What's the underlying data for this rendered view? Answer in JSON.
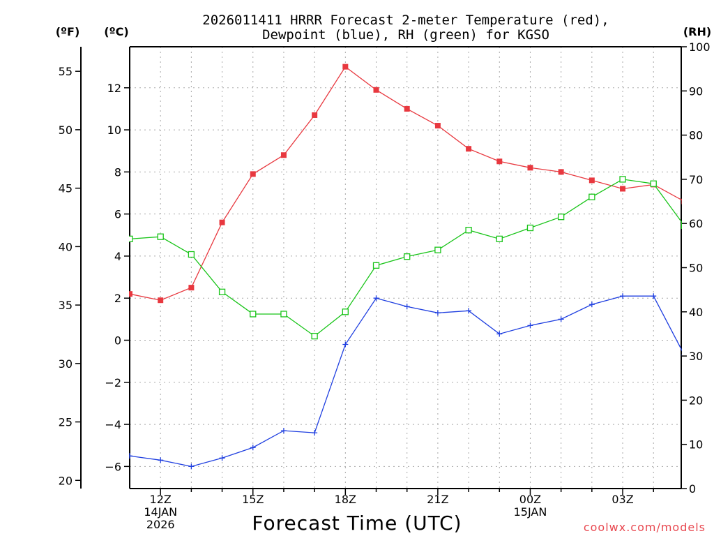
{
  "colors": {
    "temperature": "#e8383f",
    "dewpoint": "#1f3fe0",
    "rh": "#18c418",
    "credit": "#e8474f"
  },
  "chart_data": {
    "type": "line",
    "title": "2026011411 HRRR Forecast 2-meter Temperature (red),",
    "subtitle": "Dewpoint (blue), RH (green) for KGSO",
    "xlabel": "Forecast Time (UTC)",
    "credit": "coolwx.com/models",
    "units": {
      "fahrenheit": "(ºF)",
      "celsius": "(ºC)",
      "rh": "(RH)"
    },
    "x_hours": [
      11,
      12,
      13,
      14,
      15,
      16,
      17,
      18,
      19,
      20,
      21,
      22,
      23,
      24,
      25,
      26,
      27,
      28,
      29
    ],
    "xlim": [
      11,
      28.9
    ],
    "x_ticks": [
      {
        "hour": 12,
        "lines": [
          "12Z",
          "14JAN",
          "2026"
        ]
      },
      {
        "hour": 15,
        "lines": [
          "15Z"
        ]
      },
      {
        "hour": 18,
        "lines": [
          "18Z"
        ]
      },
      {
        "hour": 21,
        "lines": [
          "21Z"
        ]
      },
      {
        "hour": 24,
        "lines": [
          "00Z",
          "15JAN"
        ]
      },
      {
        "hour": 27,
        "lines": [
          "03Z"
        ]
      }
    ],
    "celsius_axis": {
      "ylim": [
        -7.05,
        13.95
      ],
      "ticks": [
        -6,
        -4,
        -2,
        0,
        2,
        4,
        6,
        8,
        10,
        12
      ]
    },
    "fahrenheit_axis": {
      "ylim": [
        19.3,
        57.1
      ],
      "ticks": [
        20,
        25,
        30,
        35,
        40,
        45,
        50,
        55
      ]
    },
    "rh_axis": {
      "ylim": [
        0,
        100
      ],
      "ticks": [
        0,
        10,
        20,
        30,
        40,
        50,
        60,
        70,
        80,
        90,
        100
      ]
    },
    "series": [
      {
        "name": "Temperature",
        "unit": "C",
        "color": "#e8383f",
        "marker": "filled-square",
        "values": [
          2.2,
          1.9,
          2.5,
          5.6,
          7.9,
          8.8,
          10.7,
          13.0,
          11.9,
          11.0,
          10.2,
          9.1,
          8.5,
          8.2,
          8.0,
          7.6,
          7.2,
          7.4,
          6.6
        ]
      },
      {
        "name": "Dewpoint",
        "unit": "C",
        "color": "#1f3fe0",
        "marker": "plus",
        "values": [
          -5.5,
          -5.7,
          -6.0,
          -5.6,
          -5.1,
          -4.3,
          -4.4,
          -0.2,
          2.0,
          1.6,
          1.3,
          1.4,
          0.3,
          0.7,
          1.0,
          1.7,
          2.1,
          2.1,
          -0.7
        ]
      },
      {
        "name": "RH",
        "unit": "%",
        "color": "#18c418",
        "marker": "open-square",
        "values": [
          56.5,
          57,
          53,
          44.5,
          39.5,
          39.5,
          34.5,
          40,
          50.5,
          52.5,
          54,
          58.5,
          56.5,
          59,
          61.5,
          66,
          70,
          69,
          59.5
        ]
      }
    ]
  }
}
